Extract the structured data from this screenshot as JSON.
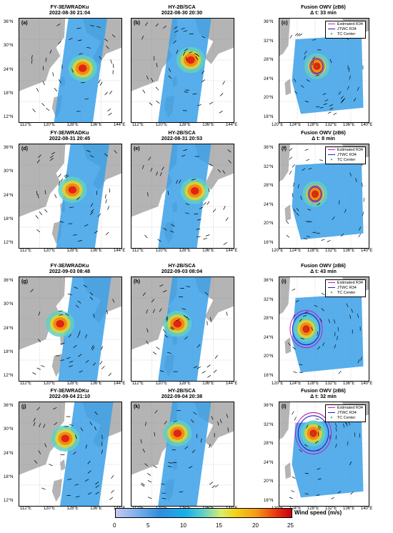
{
  "rows": [
    {
      "left": {
        "title1": "FY-3E/WRADKu",
        "title2": "2022-08-30 21:04",
        "label": "(a)"
      },
      "mid": {
        "title1": "HY-2B/SCA",
        "title2": "2022-08-30 20:30",
        "label": "(b)"
      },
      "right": {
        "title1": "Fusion OWV (≥B6)",
        "title2": "Δ t: 33 min",
        "label": "(c)"
      }
    },
    {
      "left": {
        "title1": "FY-3E/WRADKu",
        "title2": "2022-08-31 20:45",
        "label": "(d)"
      },
      "mid": {
        "title1": "HY-2B/SCA",
        "title2": "2022-08-31 20:53",
        "label": "(e)"
      },
      "right": {
        "title1": "Fusion OWV (≥B6)",
        "title2": "Δ t: 8 min",
        "label": "(f)"
      }
    },
    {
      "left": {
        "title1": "FY-3E/WRADKu",
        "title2": "2022-09-03 08:48",
        "label": "(g)"
      },
      "mid": {
        "title1": "HY-2B/SCA",
        "title2": "2022-09-03 08:04",
        "label": "(h)"
      },
      "right": {
        "title1": "Fusion OWV (≥B6)",
        "title2": "Δ t: 43 min",
        "label": "(i)"
      }
    },
    {
      "left": {
        "title1": "FY-3E/WRADKu",
        "title2": "2022-09-04 21:10",
        "label": "(j)"
      },
      "mid": {
        "title1": "HY-2B/SCA",
        "title2": "2022-09-04 20:38",
        "label": "(k)"
      },
      "right": {
        "title1": "Fusion OWV (≥B6)",
        "title2": "Δ t: 32 min",
        "label": "(l)"
      }
    }
  ],
  "wide_map": {
    "lat_ticks": [
      "36°N",
      "30°N",
      "24°N",
      "18°N",
      "12°N"
    ],
    "lon_ticks": [
      "112°E",
      "120°E",
      "128°E",
      "136°E",
      "144°E"
    ]
  },
  "zoom_map": {
    "lat_ticks": [
      "36°N",
      "32°N",
      "28°N",
      "24°N",
      "20°N",
      "16°N"
    ],
    "lon_ticks": [
      "120°E",
      "124°E",
      "128°E",
      "132°E",
      "136°E",
      "140°E"
    ]
  },
  "legend": {
    "estimated": "Estimated R34",
    "jtwc": "JTWC R34",
    "center": "TC Center",
    "estimated_color": "#c020c0",
    "jtwc_color": "#2020c0",
    "center_color": "#22aa22"
  },
  "colorbar": {
    "label": "Wind speed (m/s)",
    "ticks": [
      "0",
      "5",
      "10",
      "15",
      "20",
      "25"
    ],
    "min": 0,
    "max": 25
  },
  "colors": {
    "land": "#b4b4b4",
    "ocean": "#ffffff"
  }
}
